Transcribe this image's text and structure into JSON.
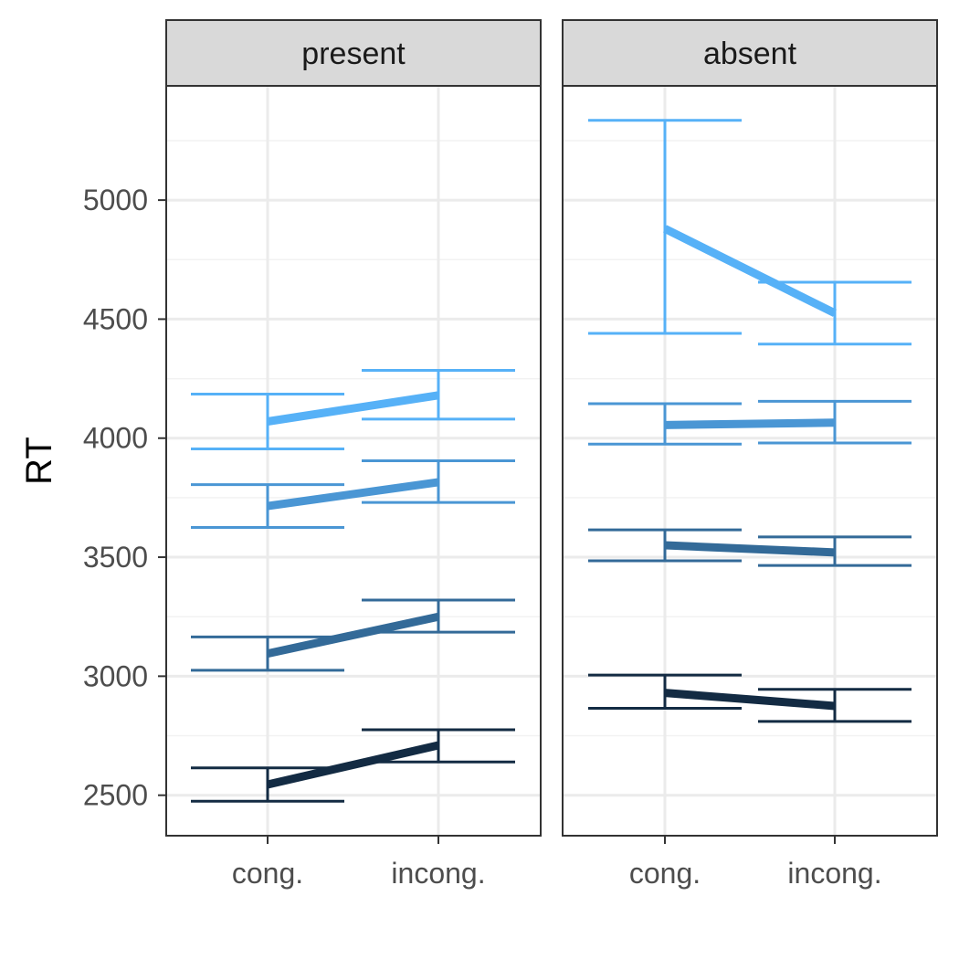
{
  "chart_data": {
    "type": "line",
    "ylabel": "RT",
    "xlabel": "",
    "ylim": [
      2330,
      5480
    ],
    "yticks": [
      2500,
      3000,
      3500,
      4000,
      4500,
      5000
    ],
    "yminor": [
      2750,
      3250,
      3750,
      4250,
      4750,
      5250
    ],
    "categories": [
      "cong.",
      "incong."
    ],
    "grid": true,
    "legend": "none",
    "colors": [
      "#132B43",
      "#336A98",
      "#4A96D4",
      "#56B1F7"
    ],
    "panels": [
      {
        "title": "present",
        "series": [
          {
            "values": [
              2545,
              2710
            ],
            "lower": [
              2475,
              2640
            ],
            "upper": [
              2615,
              2775
            ]
          },
          {
            "values": [
              3095,
              3250
            ],
            "lower": [
              3025,
              3185
            ],
            "upper": [
              3165,
              3320
            ]
          },
          {
            "values": [
              3715,
              3815
            ],
            "lower": [
              3625,
              3730
            ],
            "upper": [
              3805,
              3905
            ]
          },
          {
            "values": [
              4070,
              4180
            ],
            "lower": [
              3955,
              4080
            ],
            "upper": [
              4185,
              4285
            ]
          }
        ]
      },
      {
        "title": "absent",
        "series": [
          {
            "values": [
              2930,
              2875
            ],
            "lower": [
              2865,
              2810
            ],
            "upper": [
              3005,
              2945
            ]
          },
          {
            "values": [
              3550,
              3520
            ],
            "lower": [
              3485,
              3465
            ],
            "upper": [
              3615,
              3585
            ]
          },
          {
            "values": [
              4055,
              4065
            ],
            "lower": [
              3975,
              3980
            ],
            "upper": [
              4145,
              4155
            ]
          },
          {
            "values": [
              4880,
              4525
            ],
            "lower": [
              4440,
              4395
            ],
            "upper": [
              5335,
              4655
            ]
          }
        ]
      }
    ]
  }
}
